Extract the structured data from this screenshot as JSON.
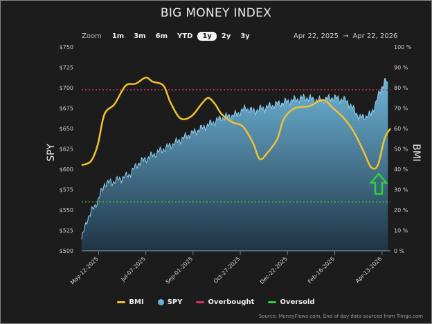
{
  "title": "BIG MONEY INDEX",
  "zoom": {
    "label": "Zoom",
    "buttons": [
      "1m",
      "3m",
      "6m",
      "YTD",
      "1y",
      "2y",
      "3y"
    ],
    "selected": "1y"
  },
  "range": {
    "from": "Apr 22, 2025",
    "arrow": "→",
    "to": "Apr 22, 2026"
  },
  "legend": [
    {
      "label": "BMI",
      "color": "#f2c230"
    },
    {
      "label": "SPY",
      "color": "#62b4e0"
    },
    {
      "label": "Overbought",
      "color": "#e0305a"
    },
    {
      "label": "Oversold",
      "color": "#2ed23a"
    }
  ],
  "source": "Source: MoneyFlows.com, End of day data sourced from Tiingo.com",
  "chart_data": {
    "type": "line",
    "title": "BIG MONEY INDEX",
    "x_unit": "days since 2025-04-22",
    "xlim": [
      0,
      366
    ],
    "xticks": [
      {
        "day": 20,
        "label": "May-12-2025"
      },
      {
        "day": 76,
        "label": "Jul-07-2025"
      },
      {
        "day": 132,
        "label": "Sep-01-2025"
      },
      {
        "day": 188,
        "label": "Oct-27-2025"
      },
      {
        "day": 244,
        "label": "Dec-22-2025"
      },
      {
        "day": 300,
        "label": "Feb-16-2026"
      },
      {
        "day": 356,
        "label": "Apr-13-2026"
      }
    ],
    "left_axis": {
      "label": "SPY",
      "ylim": [
        500,
        750
      ],
      "ticks": [
        "$500",
        "$525",
        "$550",
        "$575",
        "$600",
        "$625",
        "$650",
        "$675",
        "$700",
        "$725",
        "$750"
      ]
    },
    "right_axis": {
      "label": "BMI",
      "ylim": [
        0,
        100
      ],
      "ticks": [
        "0 %",
        "10 %",
        "20 %",
        "30 %",
        "40 %",
        "50 %",
        "60 %",
        "70 %",
        "80 %",
        "90 %",
        "100 %"
      ]
    },
    "series": [
      {
        "name": "SPY",
        "axis": "left",
        "type": "area",
        "points": [
          [
            0,
            514
          ],
          [
            7,
            540
          ],
          [
            19,
            561
          ],
          [
            27,
            582
          ],
          [
            39,
            585
          ],
          [
            56,
            593
          ],
          [
            68,
            608
          ],
          [
            89,
            620
          ],
          [
            105,
            629
          ],
          [
            125,
            641
          ],
          [
            142,
            650
          ],
          [
            166,
            663
          ],
          [
            183,
            667
          ],
          [
            195,
            675
          ],
          [
            203,
            671
          ],
          [
            216,
            675
          ],
          [
            232,
            680
          ],
          [
            248,
            684
          ],
          [
            265,
            688
          ],
          [
            281,
            684
          ],
          [
            298,
            688
          ],
          [
            314,
            684
          ],
          [
            330,
            663
          ],
          [
            343,
            667
          ],
          [
            351,
            688
          ],
          [
            359,
            709
          ],
          [
            363,
            705
          ]
        ]
      },
      {
        "name": "BMI",
        "axis": "right",
        "type": "line",
        "points": [
          [
            0,
            42
          ],
          [
            11,
            44
          ],
          [
            19,
            52
          ],
          [
            27,
            67
          ],
          [
            39,
            72
          ],
          [
            52,
            81
          ],
          [
            64,
            82
          ],
          [
            76,
            85
          ],
          [
            84,
            83
          ],
          [
            97,
            81
          ],
          [
            105,
            73
          ],
          [
            117,
            65
          ],
          [
            130,
            66
          ],
          [
            142,
            72
          ],
          [
            150,
            75
          ],
          [
            158,
            72
          ],
          [
            166,
            67
          ],
          [
            179,
            63
          ],
          [
            191,
            61
          ],
          [
            203,
            53
          ],
          [
            211,
            45
          ],
          [
            220,
            48
          ],
          [
            232,
            55
          ],
          [
            240,
            65
          ],
          [
            253,
            70
          ],
          [
            270,
            71
          ],
          [
            286,
            74
          ],
          [
            298,
            70
          ],
          [
            311,
            65
          ],
          [
            323,
            58
          ],
          [
            335,
            48
          ],
          [
            343,
            41
          ],
          [
            351,
            42
          ],
          [
            359,
            55
          ],
          [
            366,
            60
          ]
        ]
      }
    ],
    "overbought": 79,
    "oversold": 24,
    "annotation": {
      "type": "up-arrow",
      "day": 352,
      "value": 30,
      "color": "#2ed23a"
    }
  }
}
